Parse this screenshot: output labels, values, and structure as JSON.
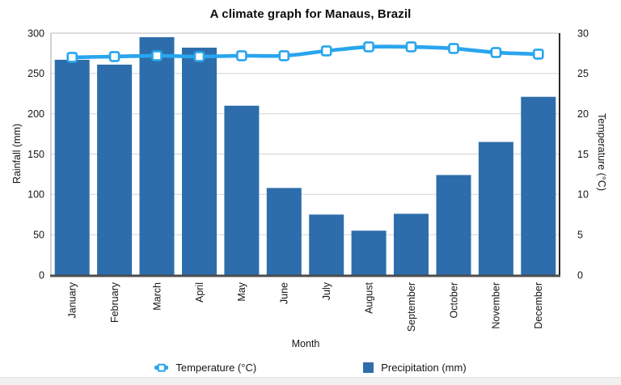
{
  "title": "A climate graph for Manaus, Brazil",
  "axes": {
    "x_title": "Month",
    "y_left_title": "Rainfall (mm)",
    "y_right_title": "Temperature (°C)"
  },
  "legend": {
    "temperature_label": "Temperature (°C)",
    "precipitation_label": "Precipitation (mm)"
  },
  "colors": {
    "bar": "#2d6dab",
    "line": "#29a5ee",
    "marker_fill": "#ffffff",
    "grid": "#d9d9d9",
    "frame_top": "#c9c9c9",
    "spine_left": "#b5b5b5",
    "spine_right": "#2b2b2b",
    "axis_bottom": "#4c4c4c",
    "text": "#161616",
    "footer_strip": "#f0f0f1"
  },
  "chart_data": {
    "type": "combo",
    "title": "A climate graph for Manaus, Brazil",
    "categories": [
      "January",
      "February",
      "March",
      "April",
      "May",
      "June",
      "July",
      "August",
      "September",
      "October",
      "November",
      "December"
    ],
    "series": [
      {
        "name": "Precipitation (mm)",
        "type": "bar",
        "y_axis": "left",
        "values": [
          267,
          261,
          295,
          282,
          210,
          108,
          75,
          55,
          76,
          124,
          165,
          221
        ]
      },
      {
        "name": "Temperature (°C)",
        "type": "line",
        "y_axis": "right",
        "marker": "open-square",
        "values": [
          27.0,
          27.1,
          27.2,
          27.1,
          27.2,
          27.2,
          27.8,
          28.3,
          28.3,
          28.1,
          27.6,
          27.4
        ]
      }
    ],
    "xlabel": "Month",
    "ylabel_left": "Rainfall (mm)",
    "ylabel_right": "Temperature (°C)",
    "ylim_left": [
      0,
      300
    ],
    "ylim_right": [
      0,
      30
    ],
    "yticks_left": [
      0,
      50,
      100,
      150,
      200,
      250,
      300
    ],
    "yticks_right": [
      0,
      5,
      10,
      15,
      20,
      25,
      30
    ],
    "grid": "horizontal",
    "legend_position": "bottom"
  }
}
